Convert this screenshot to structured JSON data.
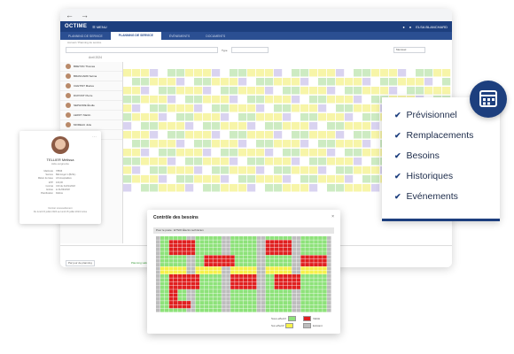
{
  "browser": {
    "back": "←",
    "forward": "→"
  },
  "app": {
    "logo": "OCTIME",
    "menu": "☰ MENU",
    "nav_tabs": [
      {
        "label": "PLANNING DE SERVICE",
        "active": false
      },
      {
        "label": "PLANNING DE SERVICE",
        "active": true
      },
      {
        "label": "ÉVÈNEMENTS",
        "active": false
      },
      {
        "label": "DOCUMENTS",
        "active": false
      }
    ],
    "user": "ELSA BLANCHARD",
    "breadcrumb": "Accueil / Planning de service",
    "filter_type_label": "Type",
    "view_mode": "Mensuel",
    "month_label": "Avril 2024"
  },
  "employees": [
    {
      "name": "BRETON Thomas"
    },
    {
      "name": "BRANCARD Selma"
    },
    {
      "name": "CHETINT Maëva"
    },
    {
      "name": "DUPONT Pierre"
    },
    {
      "name": "SEPHORE Élodie"
    },
    {
      "name": "LEROY Martin"
    },
    {
      "name": "MOREAU Julie"
    },
    {
      "name": "PETIT Nicolas"
    }
  ],
  "card": {
    "name": "TELLIER Mélissa",
    "subtitle": "Aide-soignante",
    "rows": [
      {
        "k": "Matricule",
        "v": "78836"
      },
      {
        "k": "Service",
        "v": "Bâti Angel 1 (B23L)"
      },
      {
        "k": "Métier de base",
        "v": "AS Hospitalière"
      },
      {
        "k": "ETP",
        "v": "100,00"
      },
      {
        "k": "Contrat",
        "v": "CDI du 01/01/2018"
      },
      {
        "k": "Entrée",
        "v": "le 01/09/2018"
      },
      {
        "k": "Planification",
        "v": "Définie"
      }
    ],
    "foot1": "Dernier renouvellement",
    "foot2": "Du lundi 15 juillet 2024 au lundi 15 juillet 2024 inclus"
  },
  "modal": {
    "title": "Contrôle des besoins",
    "close": "×",
    "subheader": "Pour le poste : ETSOI Électro technicien",
    "legend": [
      {
        "label": "Sous-effectif",
        "color": "#f44336"
      },
      {
        "label": "Validé",
        "color": "#e02020"
      },
      {
        "label": "Sur-effectif",
        "color": "#f6f14a"
      },
      {
        "label": "Existant",
        "color": "#bdbdbd"
      },
      {
        "label": "",
        "color": "#8ee27a"
      }
    ]
  },
  "features": [
    "Prévisionnel",
    "Remplacements",
    "Besoins",
    "Historiques",
    "Evénements"
  ],
  "bottom": {
    "planning_label": "Planning validé",
    "select_label": "Par jour de planning"
  }
}
